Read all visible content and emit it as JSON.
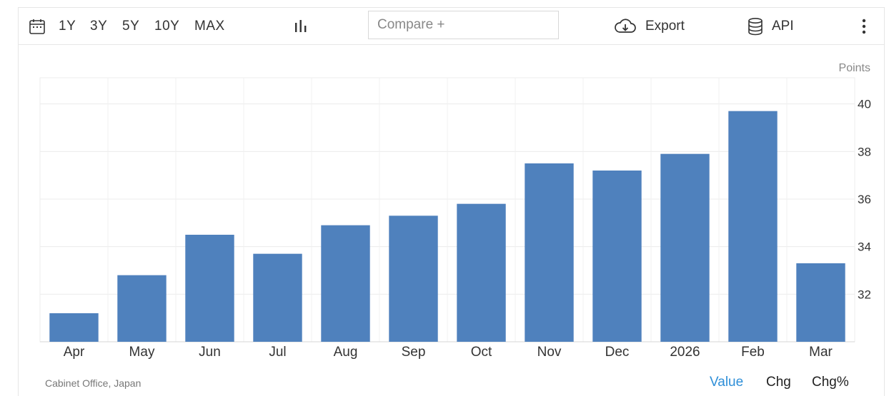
{
  "toolbar": {
    "ranges": [
      "1Y",
      "3Y",
      "5Y",
      "10Y",
      "MAX"
    ],
    "compare_placeholder": "Compare +",
    "export_label": "Export",
    "api_label": "API"
  },
  "chart_data": {
    "type": "bar",
    "categories": [
      "Apr",
      "May",
      "Jun",
      "Jul",
      "Aug",
      "Sep",
      "Oct",
      "Nov",
      "Dec",
      "2026",
      "Feb",
      "Mar"
    ],
    "values": [
      31.2,
      32.8,
      34.5,
      33.7,
      34.9,
      35.3,
      35.8,
      37.5,
      37.2,
      37.9,
      39.7,
      33.3
    ],
    "unit_label": "Points",
    "y_ticks": [
      32,
      34,
      36,
      38,
      40
    ],
    "ylim": [
      30.0,
      41.1
    ],
    "y_axis_side": "right",
    "grid": true,
    "bar_color": "#4f81bd"
  },
  "footer": {
    "source": "Cabinet Office, Japan",
    "tabs": [
      "Value",
      "Chg",
      "Chg%"
    ],
    "active_tab": "Value"
  },
  "colors": {
    "accent": "#2f8fd8",
    "bar": "#4f81bd"
  }
}
